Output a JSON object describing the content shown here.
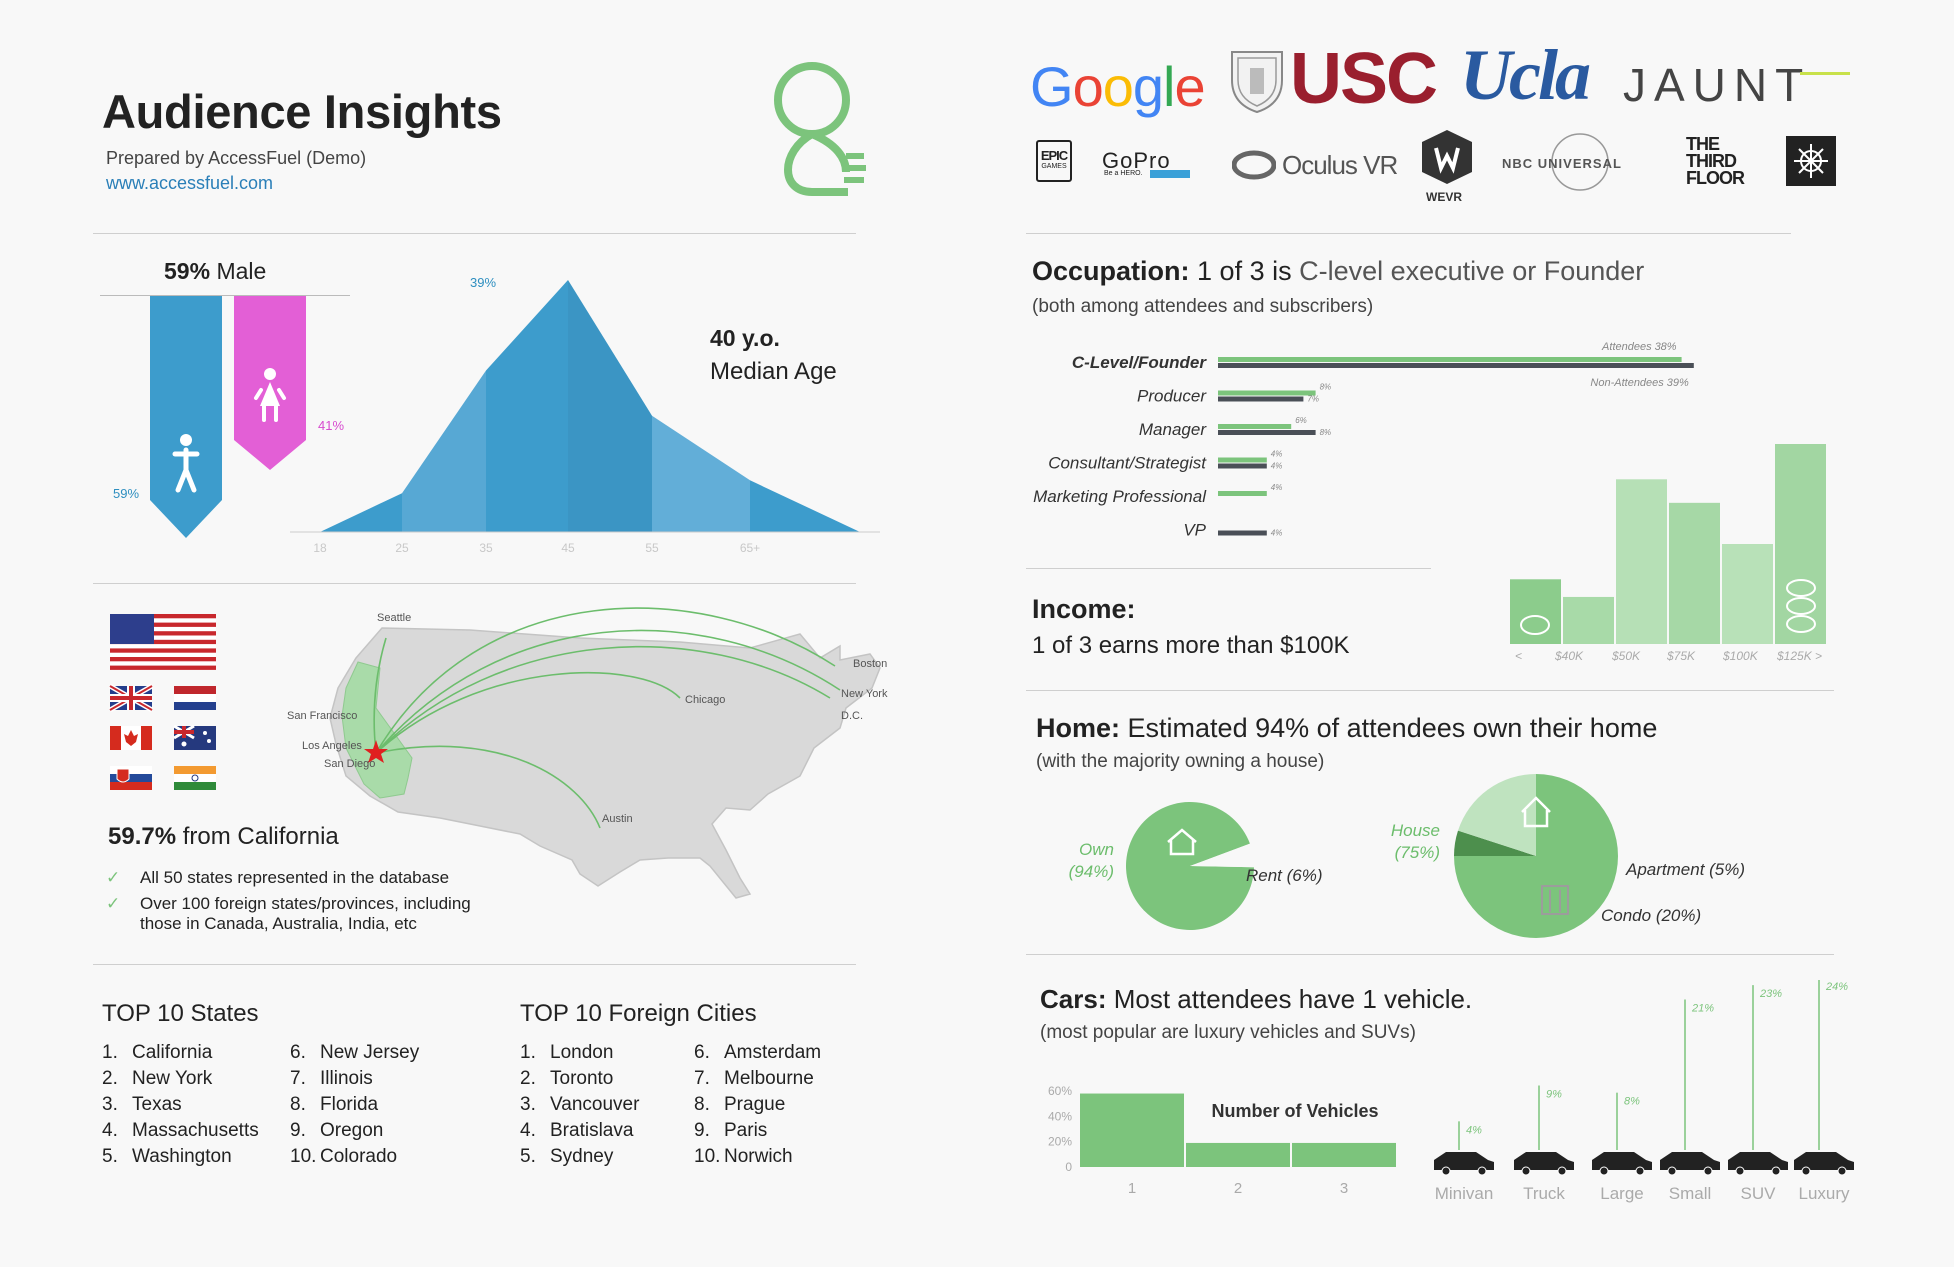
{
  "header": {
    "title": "Audience Insights",
    "prepared": "Prepared by AccessFuel (Demo)",
    "url": "www.accessfuel.com"
  },
  "logos": {
    "google": "Google",
    "usc": "USC",
    "ucla": "Ucla",
    "jaunt": "JAUNT",
    "epic": "EPIC",
    "epic_sub": "GAMES",
    "gopro": "GoPro",
    "gopro_sub": "Be a HERO.",
    "oculus": "Oculus VR",
    "wevr": "WEVR",
    "nbc": "NBC UNIVERSAL",
    "thirdfloor_1": "THE",
    "thirdfloor_2": "THIRD",
    "thirdfloor_3": "FLOOR"
  },
  "gender": {
    "headline_pct": "59%",
    "headline_label": "Male",
    "male_pct": "59%",
    "female_pct": "41%"
  },
  "age": {
    "peak_label": "39%",
    "median_value": "40 y.o.",
    "median_label": "Median Age",
    "ticks": [
      "18",
      "25",
      "35",
      "45",
      "55",
      "65+"
    ]
  },
  "geo": {
    "headline_pct": "59.7%",
    "headline_label": "from California",
    "bullet1": "All 50 states represented in the database",
    "bullet2a": "Over 100 foreign states/provinces, including",
    "bullet2b": "those in Canada, Australia, India, etc",
    "cities": {
      "seattle": "Seattle",
      "sf": "San Francisco",
      "la": "Los Angeles",
      "sd": "San Diego",
      "chicago": "Chicago",
      "boston": "Boston",
      "ny": "New York",
      "dc": "D.C.",
      "austin": "Austin"
    }
  },
  "top_states": {
    "title_bold": "TOP 10",
    "title_rest": "States",
    "items": [
      "California",
      "New York",
      "Texas",
      "Massachusetts",
      "Washington",
      "New Jersey",
      "Illinois",
      "Florida",
      "Oregon",
      "Colorado"
    ]
  },
  "top_cities": {
    "title_bold": "TOP 10",
    "title_rest": "Foreign Cities",
    "items": [
      "London",
      "Toronto",
      "Vancouver",
      "Bratislava",
      "Sydney",
      "Amsterdam",
      "Melbourne",
      "Prague",
      "Paris",
      "Norwich"
    ]
  },
  "occupation": {
    "title": "Occupation:",
    "headline_mid": "1 of 3 is",
    "headline_rest": "C-level executive or Founder",
    "sub": "(both among attendees and subscribers)",
    "attendees_label": "Attendees",
    "nonattendees_label": "Non-Attendees"
  },
  "income": {
    "title": "Income:",
    "sub": "1 of 3 earns more than $100K",
    "ticks": [
      "<",
      "$40K",
      "$50K",
      "$75K",
      "$100K",
      "$125K",
      ">"
    ]
  },
  "home": {
    "title": "Home:",
    "headline": "Estimated 94% of attendees own their home",
    "sub": "(with the majority owning a house)",
    "own_label": "Own",
    "own_pct": "(94%)",
    "rent_label": "Rent (6%)",
    "house_label": "House",
    "house_pct": "(75%)",
    "apartment_label": "Apartment (5%)",
    "condo_label": "Condo (20%)"
  },
  "cars": {
    "title": "Cars:",
    "headline": "Most attendees have 1 vehicle.",
    "sub": "(most popular are luxury vehicles and SUVs)",
    "vehicles_title": "Number of Vehicles"
  },
  "colors": {
    "blue": "#3d9ccc",
    "pink": "#e35fd6",
    "green": "#7cc47c",
    "dark": "#4a4f57"
  },
  "chart_data": [
    {
      "type": "bar",
      "id": "gender",
      "categories": [
        "Male",
        "Female"
      ],
      "values": [
        59,
        41
      ],
      "unit": "%"
    },
    {
      "type": "area",
      "id": "age",
      "x": [
        "18",
        "25",
        "35",
        "45",
        "55",
        "65+"
      ],
      "values": [
        0,
        6,
        25,
        39,
        18,
        8
      ],
      "peak_label": "39%",
      "unit": "%"
    },
    {
      "type": "bar",
      "id": "occupation",
      "categories": [
        "C-Level/Founder",
        "Producer",
        "Manager",
        "Consultant/Strategist",
        "Marketing Professional",
        "VP"
      ],
      "series": [
        {
          "name": "Attendees",
          "values": [
            38,
            8,
            6,
            4,
            4,
            0
          ],
          "labels": [
            "38%",
            "8%",
            "6%",
            "4%",
            "4%",
            ""
          ]
        },
        {
          "name": "Non-Attendees",
          "values": [
            39,
            7,
            8,
            4,
            0,
            4
          ],
          "labels": [
            "39%",
            "7%",
            "8%",
            "4%",
            "",
            "4%"
          ]
        }
      ],
      "unit": "%"
    },
    {
      "type": "bar",
      "id": "income",
      "categories": [
        "<$40K",
        "$40K-$50K",
        "$50K-$75K",
        "$75K-$100K",
        "$100K-$125K",
        ">$125K"
      ],
      "values": [
        11,
        8,
        28,
        24,
        17,
        34
      ],
      "ticks": [
        "<",
        "$40K",
        "$50K",
        "$75K",
        "$100K",
        "$125K",
        ">"
      ]
    },
    {
      "type": "pie",
      "id": "ownership",
      "labels": [
        "Own",
        "Rent"
      ],
      "values": [
        94,
        6
      ]
    },
    {
      "type": "pie",
      "id": "home_type",
      "labels": [
        "House",
        "Apartment",
        "Condo"
      ],
      "values": [
        75,
        5,
        20
      ]
    },
    {
      "type": "bar",
      "id": "num_vehicles",
      "title": "Number of Vehicles",
      "categories": [
        "1",
        "2",
        "3"
      ],
      "values": [
        58,
        19,
        19
      ],
      "yticks": [
        "60%",
        "40%",
        "20%",
        "0"
      ],
      "ylim": [
        0,
        60
      ]
    },
    {
      "type": "bar",
      "id": "vehicle_type",
      "categories": [
        "Minivan",
        "Truck",
        "Large",
        "Small",
        "SUV",
        "Luxury"
      ],
      "values": [
        4,
        9,
        8,
        21,
        23,
        24
      ],
      "labels": [
        "4%",
        "9%",
        "8%",
        "21%",
        "23%",
        "24%"
      ],
      "unit": "%"
    }
  ]
}
